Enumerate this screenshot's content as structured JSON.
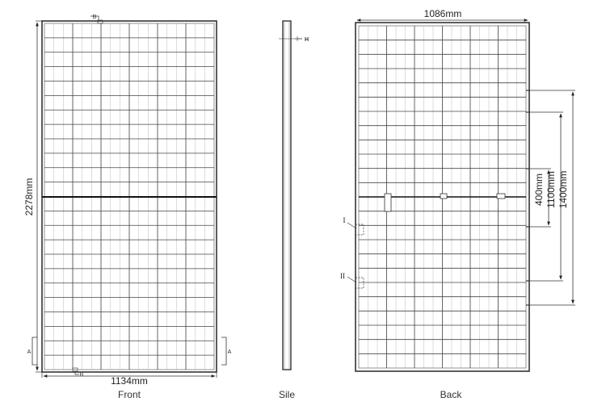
{
  "views": {
    "front": {
      "caption": "Front",
      "width_label": "1134mm",
      "height_label": "2278mm",
      "section_label": "A",
      "detail_label": "B"
    },
    "side": {
      "caption": "Sile",
      "thickness_label": "H"
    },
    "back": {
      "caption": "Back",
      "width_label": "1086mm",
      "spacing_labels": [
        "400mm",
        "1100mm",
        "1400mm"
      ],
      "detail_labels": [
        "I",
        "II"
      ]
    }
  }
}
